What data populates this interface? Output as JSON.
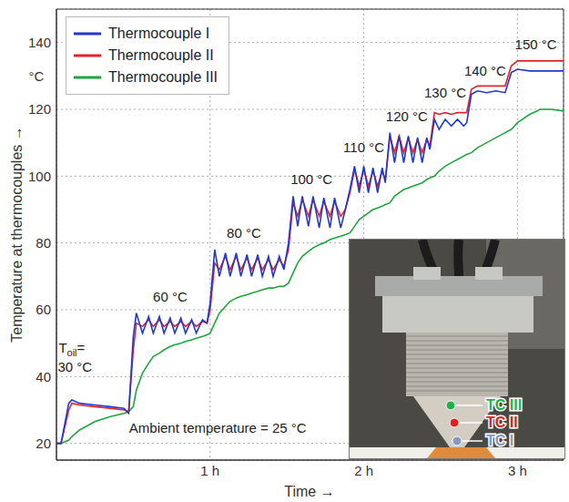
{
  "chart_data": {
    "type": "line",
    "xlabel": "Time →",
    "ylabel": "Temperature at thermocouples →",
    "y_unit": "°C",
    "x": [
      0,
      0.03,
      0.08,
      0.1,
      0.15,
      0.25,
      0.35,
      0.44,
      0.47,
      0.5,
      0.52,
      0.56,
      0.6,
      0.63,
      0.67,
      0.7,
      0.74,
      0.77,
      0.81,
      0.84,
      0.88,
      0.91,
      0.95,
      0.98,
      1.0,
      1.03,
      1.06,
      1.1,
      1.13,
      1.17,
      1.2,
      1.24,
      1.27,
      1.31,
      1.34,
      1.38,
      1.41,
      1.45,
      1.48,
      1.51,
      1.54,
      1.57,
      1.6,
      1.64,
      1.67,
      1.71,
      1.74,
      1.78,
      1.81,
      1.85,
      1.88,
      1.91,
      1.94,
      1.97,
      2.0,
      2.03,
      2.06,
      2.09,
      2.12,
      2.14,
      2.17,
      2.2,
      2.23,
      2.26,
      2.29,
      2.32,
      2.35,
      2.38,
      2.41,
      2.43,
      2.46,
      2.49,
      2.53,
      2.57,
      2.61,
      2.65,
      2.67,
      2.7,
      2.74,
      2.8,
      2.86,
      2.92,
      2.96,
      3.0,
      3.08,
      3.15,
      3.22,
      3.3
    ],
    "series": [
      {
        "name": "Thermocouple I",
        "color": "#2038d0",
        "values": [
          20,
          20,
          32,
          33,
          32,
          31.5,
          31,
          30.5,
          29,
          52,
          59,
          53,
          58,
          53,
          58,
          53,
          57.5,
          53,
          57.5,
          53,
          57,
          53,
          57,
          56,
          62,
          78,
          70,
          77,
          70,
          77,
          70,
          76.5,
          70,
          76.5,
          70,
          76,
          70,
          76,
          72,
          80,
          94,
          85,
          94,
          85,
          94,
          84.5,
          93.5,
          84.5,
          93.5,
          84.5,
          90,
          96,
          103,
          95,
          103,
          95,
          102.5,
          95,
          102.5,
          98,
          113,
          104,
          112,
          104,
          112,
          104,
          111.5,
          104,
          111.5,
          108,
          117,
          114,
          117,
          115,
          117,
          115,
          116,
          124.5,
          125.5,
          125,
          125.5,
          125,
          131,
          132,
          131.5,
          131.5,
          131.5,
          131.5
        ]
      },
      {
        "name": "Thermocouple II",
        "color": "#e3222a",
        "values": [
          20,
          20,
          30,
          32,
          31.5,
          31,
          30.5,
          30,
          29.5,
          48,
          56,
          55,
          57,
          55,
          57,
          55,
          56.5,
          55,
          56.5,
          55,
          56.5,
          55,
          56.5,
          56,
          60,
          74,
          72,
          76,
          72,
          76,
          72,
          75.5,
          72,
          75.5,
          72,
          75,
          72,
          75,
          73,
          78,
          92,
          88,
          93,
          88,
          93,
          88,
          92.5,
          88,
          92.5,
          88,
          90,
          95,
          102,
          97,
          102,
          97,
          101.5,
          97,
          101.5,
          99,
          112,
          107,
          112,
          107,
          111.5,
          107,
          111,
          107,
          111,
          109,
          119,
          118.5,
          119,
          118.5,
          119,
          119,
          119,
          126,
          127,
          127,
          127,
          127,
          133,
          134.5,
          134.5,
          134.5,
          134.5,
          134.5
        ]
      },
      {
        "name": "Thermocouple III",
        "color": "#1ea53c",
        "values": [
          20,
          20,
          21,
          22,
          24,
          26.5,
          28,
          29,
          29.5,
          31,
          36,
          41,
          44,
          46,
          47,
          48,
          49,
          49.5,
          50,
          50.5,
          51,
          51.5,
          52,
          52.5,
          53,
          56,
          59,
          61,
          62.5,
          63.5,
          64,
          64.5,
          65,
          65.5,
          66,
          66.5,
          66.5,
          67,
          67,
          68,
          71,
          74,
          76,
          77.5,
          78.5,
          79.5,
          80,
          81,
          81.5,
          82,
          82.5,
          83,
          85,
          87,
          88,
          89,
          90,
          90.5,
          91,
          91.5,
          92,
          94,
          95,
          96,
          96.5,
          97,
          97.5,
          98,
          99,
          99.5,
          100,
          101.5,
          103,
          104,
          105,
          106,
          106.5,
          107,
          108.5,
          110,
          111.5,
          113,
          114,
          116,
          118.5,
          120,
          120,
          119.5
        ]
      }
    ],
    "xlim": [
      0,
      3.3
    ],
    "xticks": [
      {
        "value": 1,
        "label": "1 h"
      },
      {
        "value": 2,
        "label": "2 h"
      },
      {
        "value": 3,
        "label": "3 h"
      }
    ],
    "ylim": [
      15,
      150
    ],
    "yticks": [
      20,
      40,
      60,
      80,
      100,
      120,
      140
    ],
    "grid": true,
    "legend": "upper left",
    "annotations": [
      {
        "text": "Toil=",
        "subscript": "oil",
        "x": 0.1,
        "y": 48.5
      },
      {
        "text": "30 °C",
        "x": 0.12,
        "y": 43
      },
      {
        "text": "60 °C",
        "x": 0.74,
        "y": 64
      },
      {
        "text": "80 °C",
        "x": 1.22,
        "y": 83
      },
      {
        "text": "100 °C",
        "x": 1.66,
        "y": 99
      },
      {
        "text": "110 °C",
        "x": 2.0,
        "y": 108.5
      },
      {
        "text": "120 °C",
        "x": 2.28,
        "y": 118
      },
      {
        "text": "130 °C",
        "x": 2.53,
        "y": 125
      },
      {
        "text": "140 °C",
        "x": 2.79,
        "y": 131.5
      },
      {
        "text": "150 °C",
        "x": 3.12,
        "y": 139.5
      },
      {
        "text": "Ambient temperature = 25 °C",
        "x": 1.05,
        "y": 24.5
      }
    ],
    "inset": {
      "labels": [
        {
          "text": "TC III",
          "color": "#1db34a"
        },
        {
          "text": "TC II",
          "color": "#e02020"
        },
        {
          "text": "TC I",
          "color": "#8798bd"
        }
      ]
    }
  }
}
